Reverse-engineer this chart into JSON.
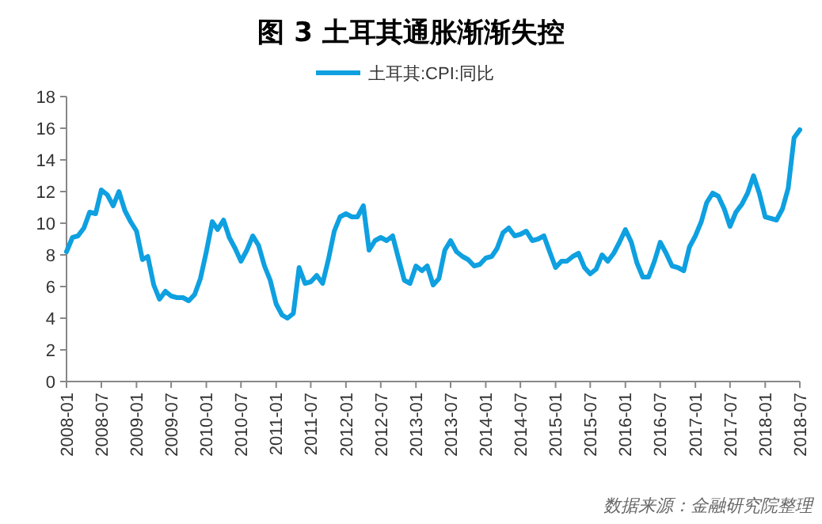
{
  "chart_data": {
    "type": "line",
    "title": "图 3  土耳其通胀渐渐失控",
    "annotations": [
      "数据来源：金融研究院整理"
    ],
    "x": [
      "2008-01",
      "2008-02",
      "2008-03",
      "2008-04",
      "2008-05",
      "2008-06",
      "2008-07",
      "2008-08",
      "2008-09",
      "2008-10",
      "2008-11",
      "2008-12",
      "2009-01",
      "2009-02",
      "2009-03",
      "2009-04",
      "2009-05",
      "2009-06",
      "2009-07",
      "2009-08",
      "2009-09",
      "2009-10",
      "2009-11",
      "2009-12",
      "2010-01",
      "2010-02",
      "2010-03",
      "2010-04",
      "2010-05",
      "2010-06",
      "2010-07",
      "2010-08",
      "2010-09",
      "2010-10",
      "2010-11",
      "2010-12",
      "2011-01",
      "2011-02",
      "2011-03",
      "2011-04",
      "2011-05",
      "2011-06",
      "2011-07",
      "2011-08",
      "2011-09",
      "2011-10",
      "2011-11",
      "2011-12",
      "2012-01",
      "2012-02",
      "2012-03",
      "2012-04",
      "2012-05",
      "2012-06",
      "2012-07",
      "2012-08",
      "2012-09",
      "2012-10",
      "2012-11",
      "2012-12",
      "2013-01",
      "2013-02",
      "2013-03",
      "2013-04",
      "2013-05",
      "2013-06",
      "2013-07",
      "2013-08",
      "2013-09",
      "2013-10",
      "2013-11",
      "2013-12",
      "2014-01",
      "2014-02",
      "2014-03",
      "2014-04",
      "2014-05",
      "2014-06",
      "2014-07",
      "2014-08",
      "2014-09",
      "2014-10",
      "2014-11",
      "2014-12",
      "2015-01",
      "2015-02",
      "2015-03",
      "2015-04",
      "2015-05",
      "2015-06",
      "2015-07",
      "2015-08",
      "2015-09",
      "2015-10",
      "2015-11",
      "2015-12",
      "2016-01",
      "2016-02",
      "2016-03",
      "2016-04",
      "2016-05",
      "2016-06",
      "2016-07",
      "2016-08",
      "2016-09",
      "2016-10",
      "2016-11",
      "2016-12",
      "2017-01",
      "2017-02",
      "2017-03",
      "2017-04",
      "2017-05",
      "2017-06",
      "2017-07",
      "2017-08",
      "2017-09",
      "2017-10",
      "2017-11",
      "2017-12",
      "2018-01",
      "2018-02",
      "2018-03",
      "2018-04",
      "2018-05",
      "2018-06",
      "2018-07"
    ],
    "series": [
      {
        "name": "土耳其:CPI:同比",
        "color": "#0ea0e0",
        "values": [
          8.2,
          9.1,
          9.2,
          9.7,
          10.7,
          10.6,
          12.1,
          11.8,
          11.1,
          12.0,
          10.8,
          10.1,
          9.5,
          7.7,
          7.9,
          6.1,
          5.2,
          5.7,
          5.4,
          5.3,
          5.3,
          5.1,
          5.5,
          6.5,
          8.2,
          10.1,
          9.6,
          10.2,
          9.1,
          8.4,
          7.6,
          8.3,
          9.2,
          8.6,
          7.3,
          6.4,
          4.9,
          4.2,
          4.0,
          4.3,
          7.2,
          6.2,
          6.3,
          6.7,
          6.2,
          7.7,
          9.5,
          10.4,
          10.6,
          10.4,
          10.4,
          11.1,
          8.3,
          8.9,
          9.1,
          8.9,
          9.2,
          7.8,
          6.4,
          6.2,
          7.3,
          7.0,
          7.3,
          6.1,
          6.5,
          8.3,
          8.9,
          8.2,
          7.9,
          7.7,
          7.3,
          7.4,
          7.8,
          7.9,
          8.4,
          9.4,
          9.7,
          9.2,
          9.3,
          9.5,
          8.9,
          9.0,
          9.2,
          8.2,
          7.2,
          7.6,
          7.6,
          7.9,
          8.1,
          7.2,
          6.8,
          7.1,
          8.0,
          7.6,
          8.1,
          8.8,
          9.6,
          8.8,
          7.5,
          6.6,
          6.6,
          7.6,
          8.8,
          8.1,
          7.3,
          7.2,
          7.0,
          8.5,
          9.2,
          10.1,
          11.3,
          11.9,
          11.7,
          10.9,
          9.8,
          10.7,
          11.2,
          11.9,
          13.0,
          11.9,
          10.4,
          10.3,
          10.2,
          10.9,
          12.2,
          15.4,
          15.9
        ]
      }
    ],
    "xlim": [
      "2008-01",
      "2018-07"
    ],
    "xticks": [
      "2008-01",
      "2008-07",
      "2009-01",
      "2009-07",
      "2010-01",
      "2010-07",
      "2011-01",
      "2011-07",
      "2012-01",
      "2012-07",
      "2013-01",
      "2013-07",
      "2014-01",
      "2014-07",
      "2015-01",
      "2015-07",
      "2016-01",
      "2016-07",
      "2017-01",
      "2017-07",
      "2018-01",
      "2018-07"
    ],
    "ylim": [
      0,
      18
    ],
    "yticks": [
      0,
      2,
      4,
      6,
      8,
      10,
      12,
      14,
      16,
      18
    ],
    "grid": false,
    "legend": "top",
    "marker": "none",
    "line_style": "solid"
  }
}
